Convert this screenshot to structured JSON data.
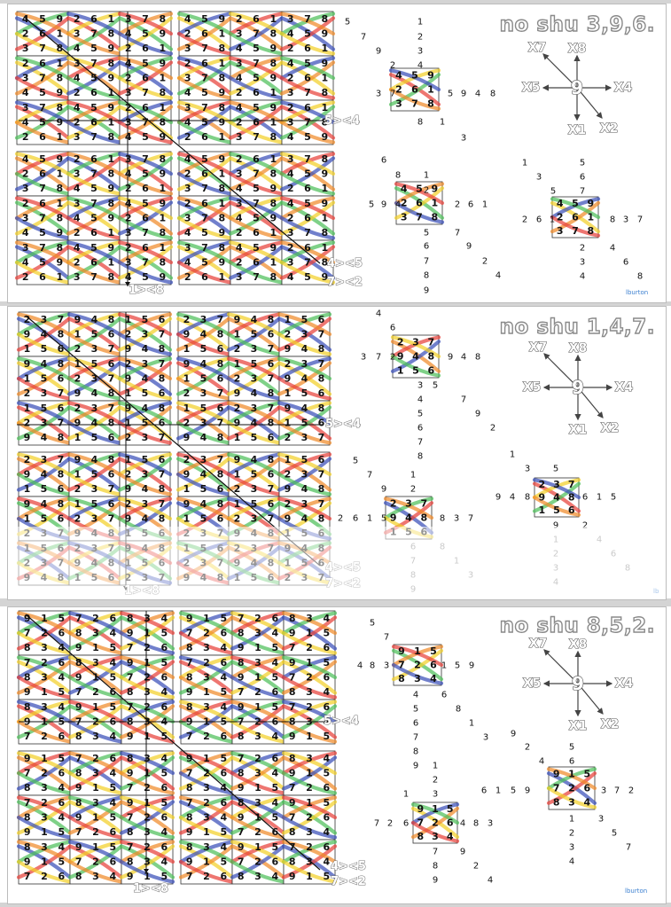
{
  "panels": [
    {
      "title": "no shu 3,9,6.",
      "labels": {
        "a": "5><4",
        "b": "4><5",
        "c": "7><2",
        "d": "1><8"
      },
      "credit": "lburton",
      "compass": {
        "x7": "X7",
        "x8": "X8",
        "x5": "X5",
        "center": "9",
        "x4": "X4",
        "x1": "X1",
        "x2": "X2"
      },
      "tiles": [
        [
          "4",
          "5",
          "9"
        ],
        [
          "2",
          "6",
          "1"
        ],
        [
          "3",
          "7",
          "8"
        ]
      ],
      "sequences": [
        {
          "id": "s0a",
          "items": [
            [
              "5",
              383,
              20
            ],
            [
              "7",
              401,
              37
            ],
            [
              "9",
              418,
              53
            ],
            [
              "2",
              434,
              69
            ],
            [
              "4",
              465,
              69
            ],
            [
              "1",
              465,
              20
            ],
            [
              "2",
              465,
              37
            ],
            [
              "3",
              465,
              53
            ],
            [
              "3",
              418,
              101
            ],
            [
              "7",
              434,
              101
            ],
            [
              "5",
              499,
              101
            ],
            [
              "9",
              514,
              101
            ],
            [
              "4",
              530,
              101
            ],
            [
              "8",
              547,
              101
            ],
            [
              "8",
              465,
              133
            ],
            [
              "1",
              490,
              133
            ],
            [
              "3",
              514,
              151
            ]
          ]
        },
        {
          "id": "s0b",
          "items": [
            [
              "6",
              424,
              176
            ],
            [
              "8",
              440,
              193
            ],
            [
              "1",
              472,
              193
            ],
            [
              "2",
              472,
              210
            ],
            [
              "5",
              410,
              226
            ],
            [
              "9",
              424,
              226
            ],
            [
              "4",
              440,
              226
            ],
            [
              "2",
              507,
              226
            ],
            [
              "6",
              522,
              226
            ],
            [
              "1",
              538,
              226
            ],
            [
              "5",
              472,
              258
            ],
            [
              "7",
              507,
              258
            ],
            [
              "6",
              472,
              273
            ],
            [
              "9",
              520,
              273
            ],
            [
              "7",
              472,
              290
            ],
            [
              "2",
              538,
              290
            ],
            [
              "8",
              472,
              306
            ],
            [
              "4",
              553,
              306
            ],
            [
              "9",
              472,
              323
            ]
          ]
        },
        {
          "id": "s0c",
          "items": [
            [
              "1",
              583,
              179
            ],
            [
              "5",
              648,
              179
            ],
            [
              "3",
              599,
              195
            ],
            [
              "6",
              648,
              195
            ],
            [
              "5",
              615,
              211
            ],
            [
              "7",
              648,
              211
            ],
            [
              "2",
              583,
              243
            ],
            [
              "6",
              599,
              243
            ],
            [
              "1",
              614,
              243
            ],
            [
              "8",
              682,
              243
            ],
            [
              "3",
              697,
              243
            ],
            [
              "7",
              713,
              243
            ],
            [
              "2",
              648,
              275
            ],
            [
              "4",
              682,
              275
            ],
            [
              "3",
              648,
              291
            ],
            [
              "6",
              697,
              291
            ],
            [
              "4",
              648,
              307
            ],
            [
              "8",
              713,
              307
            ]
          ]
        }
      ]
    },
    {
      "title": "no shu 1,4,7.",
      "labels": {
        "a": "5><4",
        "b": "4><5",
        "c": "7><2",
        "d": "1><8"
      },
      "credit": "lb",
      "compass": {
        "x7": "X7",
        "x8": "X8",
        "x5": "X5",
        "center": "9",
        "x4": "X4",
        "x1": "X1",
        "x2": "X2"
      },
      "tiles": [
        [
          "2",
          "3",
          "7"
        ],
        [
          "9",
          "4",
          "8"
        ],
        [
          "1",
          "5",
          "6"
        ]
      ],
      "sequences": [
        {
          "id": "s1a",
          "items": [
            [
              "4",
              418,
              8
            ],
            [
              "6",
              434,
              24
            ],
            [
              "3",
              401,
              57
            ],
            [
              "7",
              418,
              57
            ],
            [
              "2",
              434,
              57
            ],
            [
              "9",
              499,
              57
            ],
            [
              "4",
              514,
              57
            ],
            [
              "8",
              530,
              57
            ],
            [
              "3",
              465,
              89
            ],
            [
              "5",
              482,
              89
            ],
            [
              "4",
              465,
              105
            ],
            [
              "7",
              514,
              105
            ],
            [
              "5",
              465,
              121
            ],
            [
              "9",
              530,
              121
            ],
            [
              "6",
              465,
              137
            ],
            [
              "2",
              547,
              137
            ],
            [
              "7",
              465,
              153
            ],
            [
              "8",
              465,
              169
            ]
          ]
        },
        {
          "id": "s1b",
          "items": [
            [
              "5",
              392,
              174
            ],
            [
              "7",
              408,
              190
            ],
            [
              "1",
              457,
              190
            ],
            [
              "9",
              424,
              206
            ],
            [
              "2",
              457,
              206
            ],
            [
              "2",
              375,
              239
            ],
            [
              "6",
              392,
              239
            ],
            [
              "1",
              408,
              239
            ],
            [
              "5",
              424,
              239
            ],
            [
              "8",
              490,
              239
            ],
            [
              "3",
              506,
              239
            ],
            [
              "7",
              522,
              239
            ],
            [
              "6",
              457,
              271,
              1
            ],
            [
              "8",
              490,
              271,
              1
            ],
            [
              "7",
              457,
              287,
              1
            ],
            [
              "1",
              506,
              287,
              1
            ],
            [
              "8",
              457,
              303,
              1
            ],
            [
              "3",
              522,
              303,
              1
            ],
            [
              "9",
              457,
              319,
              1
            ]
          ]
        },
        {
          "id": "s1c",
          "items": [
            [
              "1",
              569,
              167
            ],
            [
              "3",
              586,
              183
            ],
            [
              "5",
              618,
              183
            ],
            [
              "9",
              553,
              215
            ],
            [
              "4",
              569,
              215
            ],
            [
              "8",
              586,
              215
            ],
            [
              "6",
              651,
              215
            ],
            [
              "1",
              667,
              215
            ],
            [
              "5",
              683,
              215
            ],
            [
              "9",
              618,
              247
            ],
            [
              "2",
              651,
              247
            ],
            [
              "1",
              618,
              263,
              1
            ],
            [
              "4",
              667,
              263,
              1
            ],
            [
              "2",
              618,
              279,
              1
            ],
            [
              "6",
              683,
              279,
              1
            ],
            [
              "3",
              618,
              295,
              1
            ],
            [
              "8",
              699,
              295,
              1
            ],
            [
              "4",
              618,
              311,
              1
            ]
          ]
        }
      ]
    },
    {
      "title": "no shu 8,5,2.",
      "labels": {
        "a": "5><4",
        "b": "4><5",
        "c": "7><2",
        "d": "1><8"
      },
      "credit": "lburton",
      "compass": {
        "x7": "X7",
        "x8": "X8",
        "x5": "X5",
        "center": "9",
        "x4": "X4",
        "x1": "X1",
        "x2": "X2"
      },
      "tiles": [
        [
          "9",
          "1",
          "5"
        ],
        [
          "7",
          "2",
          "6"
        ],
        [
          "8",
          "3",
          "4"
        ]
      ],
      "sequences": [
        {
          "id": "s2a",
          "items": [
            [
              "5",
              411,
              18
            ],
            [
              "7",
              427,
              34
            ],
            [
              "4",
              397,
              66
            ],
            [
              "8",
              411,
              66
            ],
            [
              "3",
              427,
              66
            ],
            [
              "1",
              492,
              66
            ],
            [
              "5",
              507,
              66
            ],
            [
              "9",
              523,
              66
            ],
            [
              "4",
              460,
              99
            ],
            [
              "6",
              492,
              99
            ],
            [
              "5",
              460,
              115
            ],
            [
              "8",
              508,
              115
            ],
            [
              "6",
              460,
              131
            ],
            [
              "1",
              523,
              131
            ],
            [
              "7",
              460,
              147
            ],
            [
              "3",
              539,
              147
            ],
            [
              "8",
              460,
              163
            ],
            [
              "9",
              460,
              179
            ]
          ]
        },
        {
          "id": "s2b",
          "items": [
            [
              "1",
              482,
              179
            ],
            [
              "2",
              482,
              195
            ],
            [
              "3",
              482,
              211
            ],
            [
              "1",
              449,
              211
            ],
            [
              "7",
              416,
              244
            ],
            [
              "2",
              431,
              244
            ],
            [
              "6",
              449,
              244
            ],
            [
              "4",
              513,
              244
            ],
            [
              "8",
              528,
              244
            ],
            [
              "3",
              544,
              244
            ],
            [
              "7",
              482,
              276
            ],
            [
              "9",
              513,
              276
            ],
            [
              "8",
              482,
              292
            ],
            [
              "2",
              528,
              292
            ],
            [
              "9",
              482,
              308
            ],
            [
              "4",
              544,
              308
            ]
          ]
        },
        {
          "id": "s2c",
          "items": [
            [
              "9",
              570,
              143
            ],
            [
              "5",
              636,
              158
            ],
            [
              "2",
              586,
              158
            ],
            [
              "4",
              602,
              174
            ],
            [
              "6",
              636,
              174
            ],
            [
              "6",
              537,
              207
            ],
            [
              "1",
              553,
              207
            ],
            [
              "5",
              570,
              207
            ],
            [
              "9",
              586,
              207
            ],
            [
              "3",
              672,
              207
            ],
            [
              "7",
              687,
              207
            ],
            [
              "2",
              703,
              207
            ],
            [
              "1",
              636,
              239
            ],
            [
              "3",
              669,
              239
            ],
            [
              "2",
              636,
              255
            ],
            [
              "5",
              684,
              255
            ],
            [
              "3",
              636,
              271
            ],
            [
              "7",
              700,
              271
            ],
            [
              "4",
              636,
              287
            ]
          ]
        }
      ]
    }
  ],
  "colors": {
    "blue": "#3a4fb8",
    "red": "#e8413a",
    "green": "#4dbf5a",
    "yellow": "#f2d02a",
    "orange": "#f08a2a"
  }
}
